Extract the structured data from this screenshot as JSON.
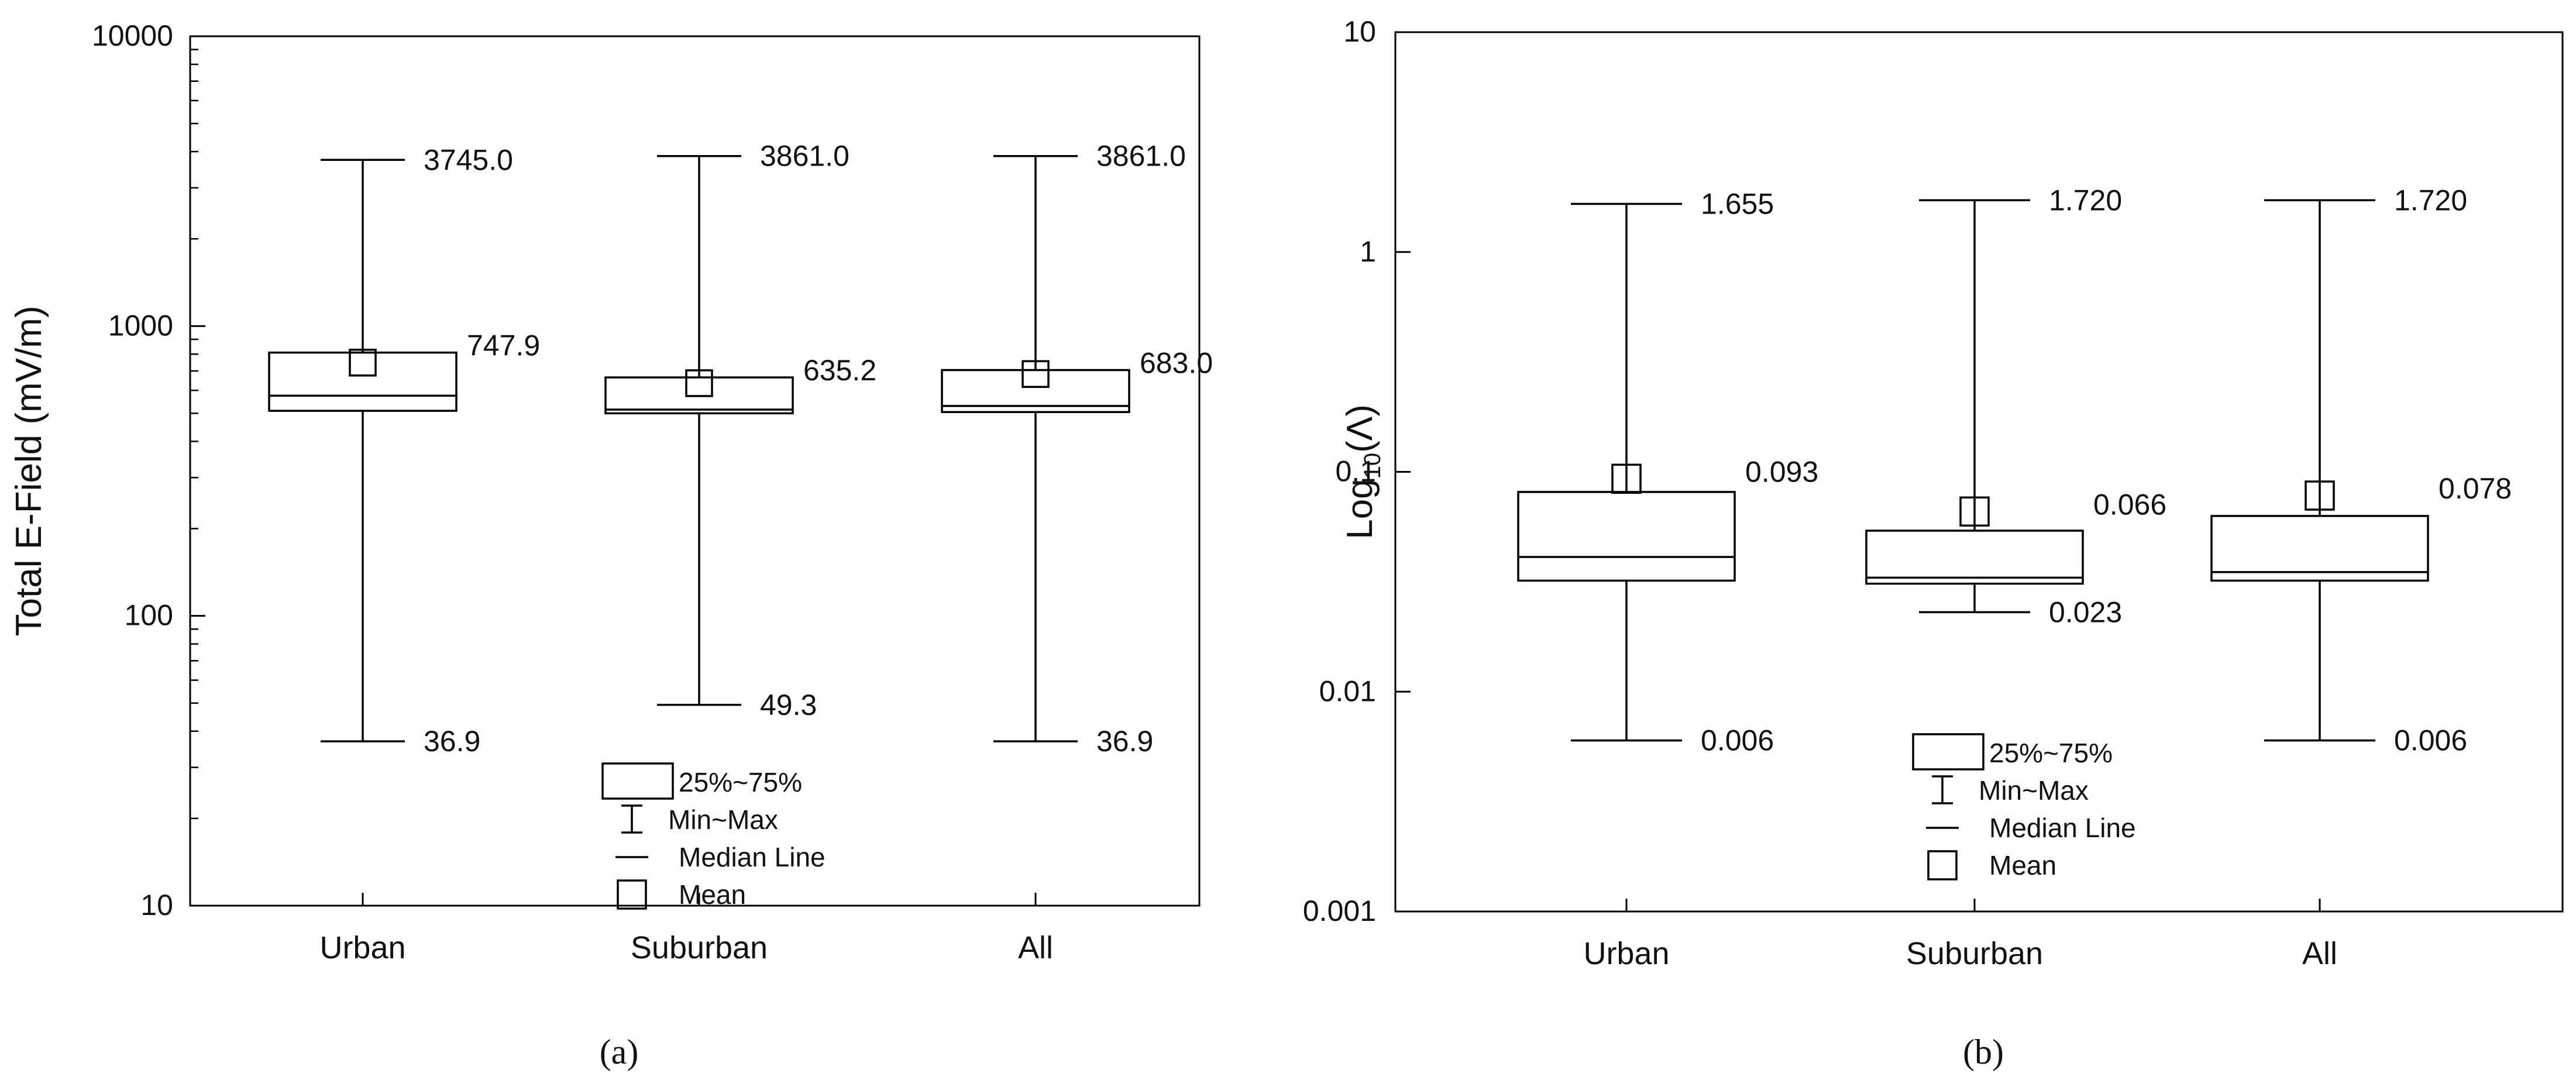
{
  "chart_data": [
    {
      "type": "box",
      "panel_label": "(a)",
      "ylabel": "Total E-Field (mV/m)",
      "yscale": "log",
      "ylim": [
        10,
        10000
      ],
      "yticks": [
        10,
        100,
        1000,
        10000
      ],
      "ytick_labels": [
        "10",
        "100",
        "1000",
        "10000"
      ],
      "categories": [
        "Urban",
        "Suburban",
        "All"
      ],
      "boxes": [
        {
          "category": "Urban",
          "min": 36.9,
          "q1": 510,
          "median": 575,
          "q3": 810,
          "max": 3745.0,
          "mean": 747.9,
          "min_label": "36.9",
          "max_label": "3745.0",
          "mean_label": "747.9"
        },
        {
          "category": "Suburban",
          "min": 49.3,
          "q1": 500,
          "median": 515,
          "q3": 665,
          "max": 3861.0,
          "mean": 635.2,
          "min_label": "49.3",
          "max_label": "3861.0",
          "mean_label": "635.2"
        },
        {
          "category": "All",
          "min": 36.9,
          "q1": 505,
          "median": 530,
          "q3": 705,
          "max": 3861.0,
          "mean": 683.0,
          "min_label": "36.9",
          "max_label": "3861.0",
          "mean_label": "683.0"
        }
      ],
      "legend": {
        "position": "bottom-center",
        "entries": [
          "25%~75%",
          "Min~Max",
          "Median Line",
          "Mean"
        ]
      }
    },
    {
      "type": "box",
      "panel_label": "(b)",
      "ylabel": "Log",
      "ylabel_sub": "10",
      "ylabel_tail": "(Λ)",
      "yscale": "log",
      "ylim": [
        0.001,
        10
      ],
      "yticks": [
        0.001,
        0.01,
        0.1,
        1,
        10
      ],
      "ytick_labels": [
        "0.001",
        "0.01",
        "0.1",
        "1",
        "10"
      ],
      "categories": [
        "Urban",
        "Suburban",
        "All"
      ],
      "boxes": [
        {
          "category": "Urban",
          "min": 0.006,
          "q1": 0.032,
          "median": 0.041,
          "q3": 0.081,
          "max": 1.655,
          "mean": 0.093,
          "min_label": "0.006",
          "max_label": "1.655",
          "mean_label": "0.093"
        },
        {
          "category": "Suburban",
          "min": 0.023,
          "q1": 0.031,
          "median": 0.033,
          "q3": 0.054,
          "max": 1.72,
          "mean": 0.066,
          "min_label": "0.023",
          "max_label": "1.720",
          "mean_label": "0.066"
        },
        {
          "category": "All",
          "min": 0.006,
          "q1": 0.032,
          "median": 0.035,
          "q3": 0.063,
          "max": 1.72,
          "mean": 0.078,
          "min_label": "0.006",
          "max_label": "1.720",
          "mean_label": "0.078"
        }
      ],
      "legend": {
        "position": "bottom-center",
        "entries": [
          "25%~75%",
          "Min~Max",
          "Median Line",
          "Mean"
        ]
      }
    }
  ]
}
